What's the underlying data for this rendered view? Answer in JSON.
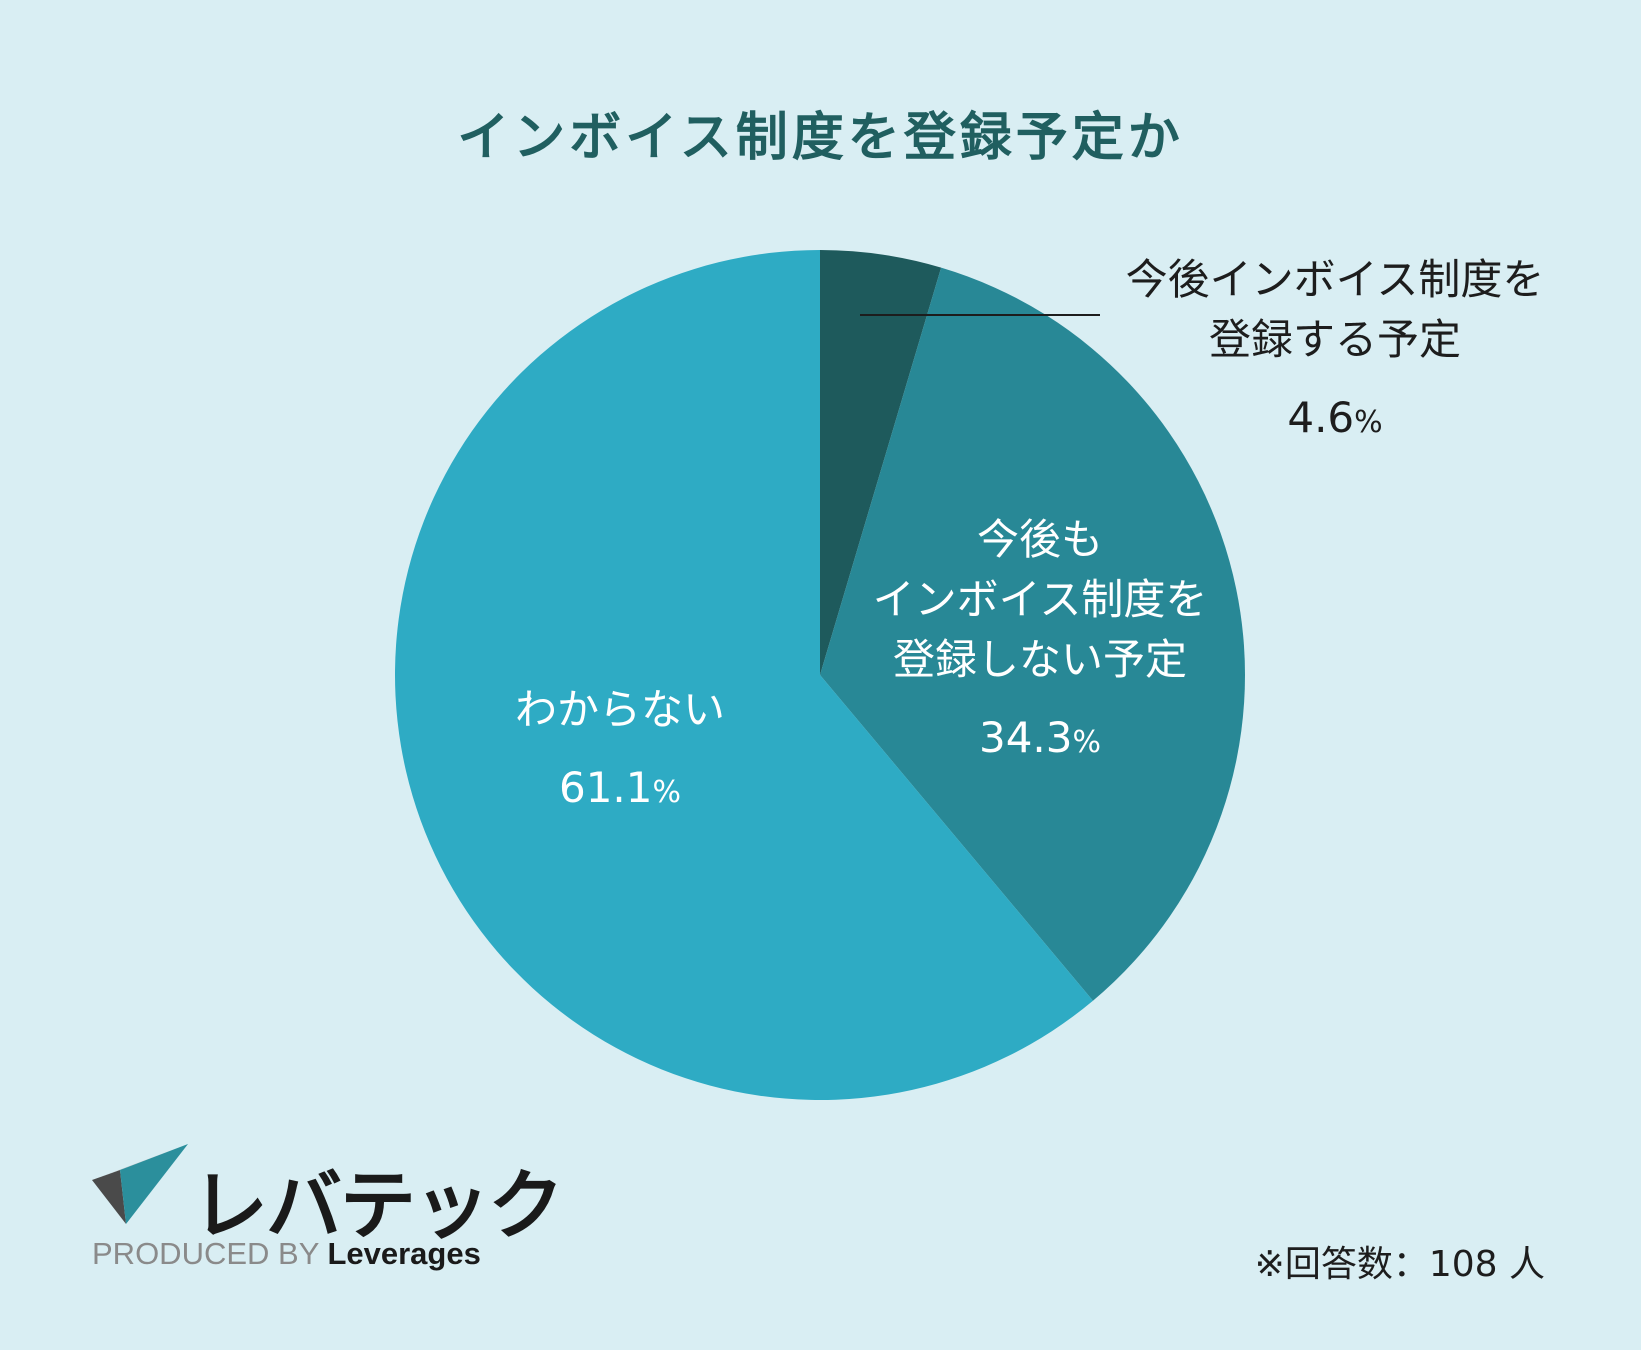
{
  "chart_data": {
    "type": "pie",
    "title": "インボイス制度を登録予定か",
    "slices": [
      {
        "label_lines": [
          "今後インボイス制度を",
          "登録する予定"
        ],
        "value": 4.6,
        "value_text": "4.6",
        "unit": "%",
        "color": "#1e5a5c",
        "label_color": "#1d1d1d",
        "label_position": "outside-right"
      },
      {
        "label_lines": [
          "今後も",
          "インボイス制度を",
          "登録しない予定"
        ],
        "value": 34.3,
        "value_text": "34.3",
        "unit": "%",
        "color": "#288896",
        "label_color": "#ffffff",
        "label_position": "inside"
      },
      {
        "label_lines": [
          "わからない"
        ],
        "value": 61.1,
        "value_text": "61.1",
        "unit": "%",
        "color": "#2eabc4",
        "label_color": "#ffffff",
        "label_position": "inside"
      }
    ],
    "start_angle_deg": 0,
    "direction": "clockwise",
    "leader_line": true
  },
  "logo": {
    "wordmark": "レバテック",
    "produced_by": "PRODUCED BY",
    "brand": "Leverages"
  },
  "footnote": "※回答数：108 人",
  "colors": {
    "background": "#d9eef3",
    "title": "#205f60"
  }
}
